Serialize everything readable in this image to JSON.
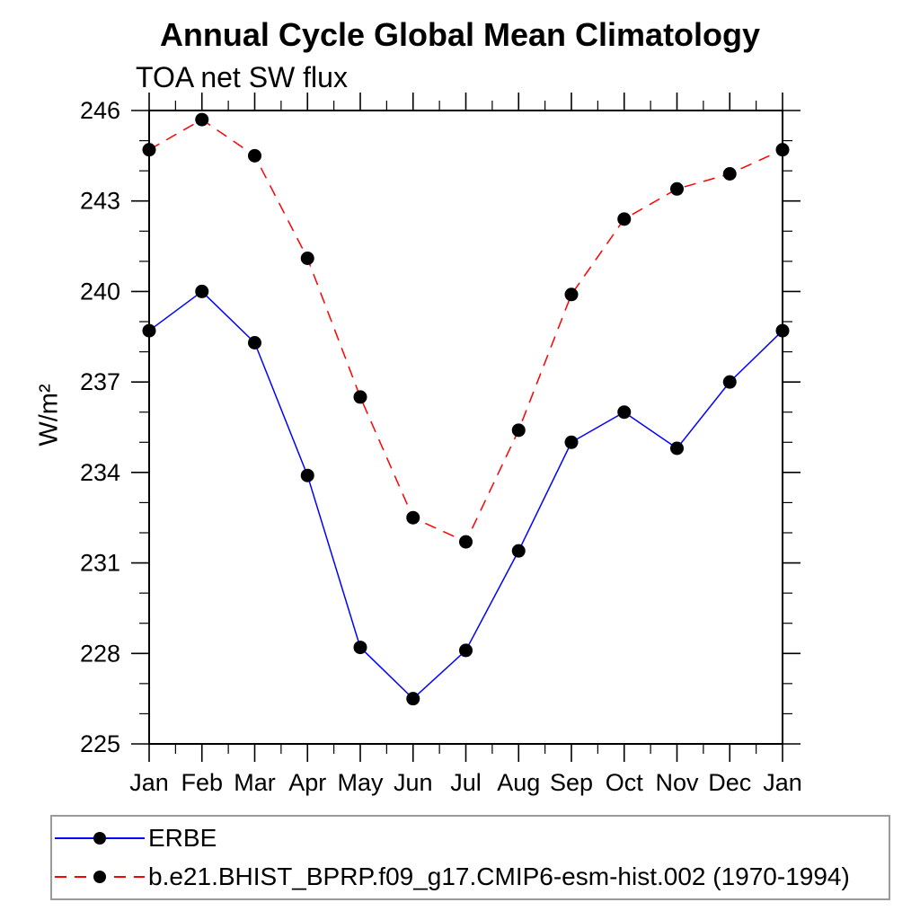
{
  "chart_data": {
    "type": "line",
    "title": "Annual Cycle Global Mean Climatology",
    "subtitle": "TOA net SW flux",
    "ylabel": "W/m²",
    "categories": [
      "Jan",
      "Feb",
      "Mar",
      "Apr",
      "May",
      "Jun",
      "Jul",
      "Aug",
      "Sep",
      "Oct",
      "Nov",
      "Dec",
      "Jan"
    ],
    "ylim": [
      225,
      246
    ],
    "yticks_major": [
      225,
      228,
      231,
      234,
      237,
      240,
      243,
      246
    ],
    "ytick_minor_step": 1,
    "x_minor_ticks": "half-month",
    "grid": false,
    "axis_color": "#000000",
    "marker": "filled-circle",
    "marker_color": "#000000",
    "legend_position": "bottom-left-box",
    "series": [
      {
        "name": "ERBE",
        "color": "#0000ff",
        "line_style": "solid",
        "values": [
          238.7,
          240.0,
          238.3,
          233.9,
          228.2,
          226.5,
          228.1,
          231.4,
          235.0,
          236.0,
          234.8,
          237.0,
          238.7
        ]
      },
      {
        "name": "b.e21.BHIST_BPRP.f09_g17.CMIP6-esm-hist.002 (1970-1994)",
        "color": "#ff0000",
        "line_style": "dashed",
        "values": [
          244.7,
          245.7,
          244.5,
          241.1,
          236.5,
          232.5,
          231.7,
          235.4,
          239.9,
          242.4,
          243.4,
          243.9,
          244.7
        ]
      }
    ]
  }
}
